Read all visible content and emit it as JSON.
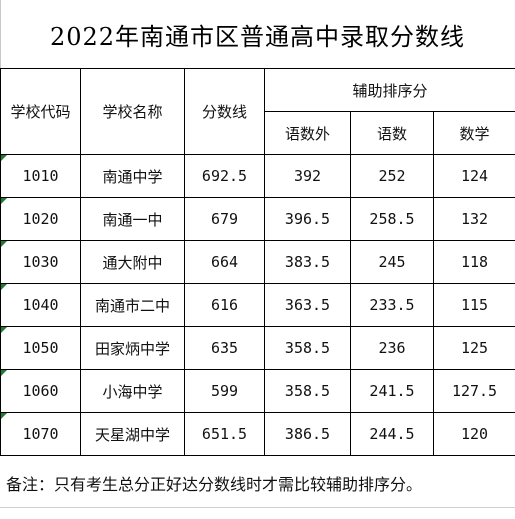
{
  "title": "2022年南通市区普通高中录取分数线",
  "headers": {
    "code": "学校代码",
    "name": "学校名称",
    "score": "分数线",
    "aux_group": "辅助排序分",
    "aux_1": "语数外",
    "aux_2": "语数",
    "aux_3": "数学"
  },
  "rows": [
    {
      "code": "1010",
      "name": "南通中学",
      "score": "692.5",
      "aux_1": "392",
      "aux_2": "252",
      "aux_3": "124"
    },
    {
      "code": "1020",
      "name": "南通一中",
      "score": "679",
      "aux_1": "396.5",
      "aux_2": "258.5",
      "aux_3": "132"
    },
    {
      "code": "1030",
      "name": "通大附中",
      "score": "664",
      "aux_1": "383.5",
      "aux_2": "245",
      "aux_3": "118"
    },
    {
      "code": "1040",
      "name": "南通市二中",
      "score": "616",
      "aux_1": "363.5",
      "aux_2": "233.5",
      "aux_3": "115"
    },
    {
      "code": "1050",
      "name": "田家炳中学",
      "score": "635",
      "aux_1": "358.5",
      "aux_2": "236",
      "aux_3": "125"
    },
    {
      "code": "1060",
      "name": "小海中学",
      "score": "599",
      "aux_1": "358.5",
      "aux_2": "241.5",
      "aux_3": "127.5"
    },
    {
      "code": "1070",
      "name": "天星湖中学",
      "score": "651.5",
      "aux_1": "386.5",
      "aux_2": "244.5",
      "aux_3": "120"
    }
  ],
  "note": "备注：只有考生总分正好达分数线时才需比较辅助排序分。",
  "colors": {
    "grid_line": "#000000",
    "cell_marker": "#1e7b34"
  }
}
